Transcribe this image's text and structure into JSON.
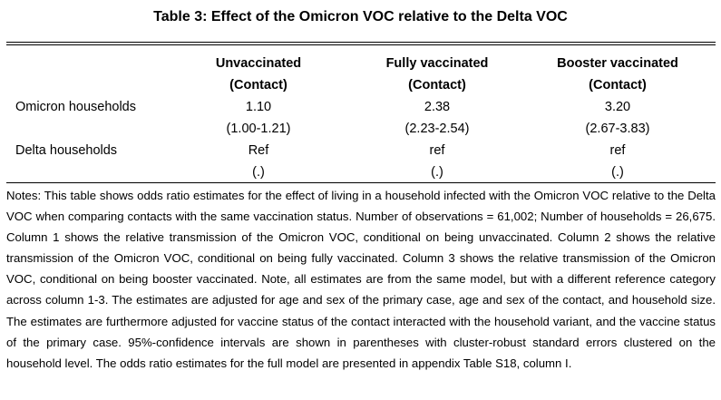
{
  "table": {
    "title": "Table 3: Effect of the Omicron VOC relative to the Delta VOC",
    "columns": [
      {
        "name": "Unvaccinated",
        "sub": "(Contact)"
      },
      {
        "name": "Fully vaccinated",
        "sub": "(Contact)"
      },
      {
        "name": "Booster vaccinated",
        "sub": "(Contact)"
      }
    ],
    "rows": [
      {
        "label": "Omicron households",
        "values": [
          "1.10",
          "2.38",
          "3.20"
        ],
        "ci": [
          "(1.00-1.21)",
          "(2.23-2.54)",
          "(2.67-3.83)"
        ]
      },
      {
        "label": "Delta households",
        "values": [
          "Ref",
          "ref",
          "ref"
        ],
        "ci": [
          "(.)",
          "(.)",
          "(.)"
        ]
      }
    ],
    "notes": "Notes: This table shows odds ratio estimates for the effect of living in a household infected with the Omicron VOC relative to the Delta VOC when comparing contacts with the same vaccination status. Number of observations = 61,002; Number of households = 26,675. Column 1 shows the relative transmission of the Omicron VOC, conditional on being unvaccinated. Column 2 shows the relative transmission of the Omicron VOC, conditional on being fully vaccinated. Column 3 shows the relative transmission of the Omicron VOC, conditional on being booster vaccinated. Note, all estimates are from the same model, but with a different reference category across column 1-3. The estimates are adjusted for age and sex of the primary case, age and sex of the contact, and household size. The estimates are furthermore adjusted for vaccine status of the contact interacted with the household variant, and the vaccine status of the primary case. 95%-confidence intervals are shown in parentheses with cluster-robust standard errors clustered on the household level. The odds ratio estimates for the full model are presented in appendix Table S18, column I."
  }
}
